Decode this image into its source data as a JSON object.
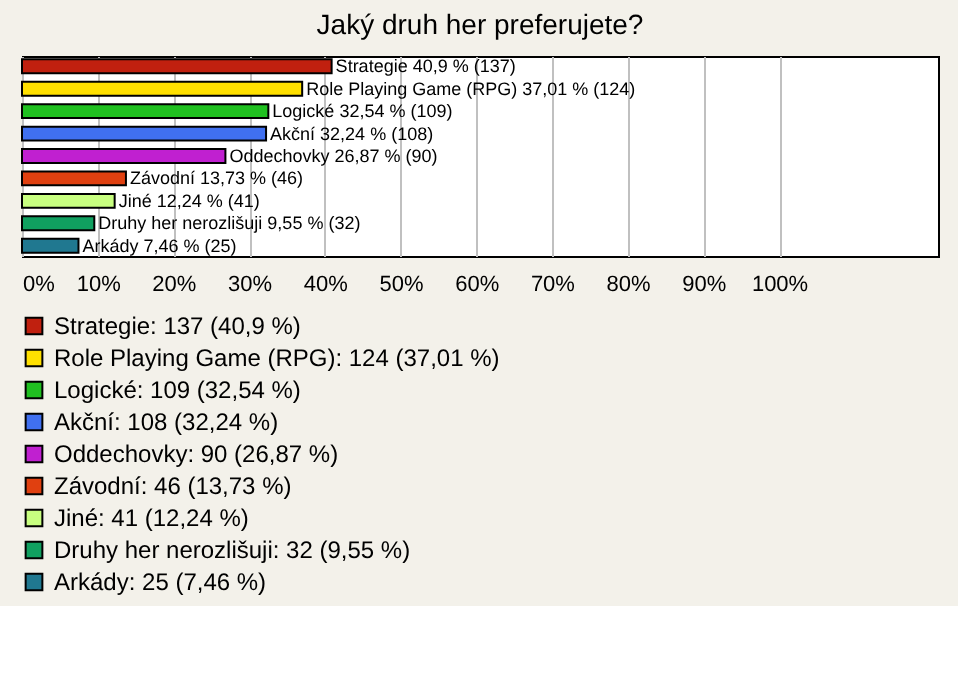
{
  "chart_data": {
    "type": "bar",
    "orientation": "horizontal",
    "title": "Jaký druh her preferujete?",
    "categories": [
      "Strategie",
      "Role Playing Game (RPG)",
      "Logické",
      "Akční",
      "Oddechovky",
      "Závodní",
      "Jiné",
      "Druhy her nerozlišuji",
      "Arkády"
    ],
    "series": [
      {
        "name": "Strategie: 137 (40,9 %)",
        "color": "#c0200f",
        "values": [
          40.9,
          null,
          null,
          null,
          null,
          null,
          null,
          null,
          null
        ],
        "value_labels": [
          "40,9 % (137)",
          null,
          null,
          null,
          null,
          null,
          null,
          null,
          null
        ]
      },
      {
        "name": "Role Playing Game (RPG): 124 (37,01 %)",
        "color": "#ffe000",
        "values": [
          null,
          37.01,
          null,
          null,
          null,
          null,
          null,
          null,
          null
        ],
        "value_labels": [
          null,
          "37,01 % (124)",
          null,
          null,
          null,
          null,
          null,
          null,
          null
        ]
      },
      {
        "name": "Logické: 109 (32,54 %)",
        "color": "#20c020",
        "values": [
          null,
          null,
          32.54,
          null,
          null,
          null,
          null,
          null,
          null
        ],
        "value_labels": [
          null,
          null,
          "32,54 % (109)",
          null,
          null,
          null,
          null,
          null,
          null
        ]
      },
      {
        "name": "Akční: 108 (32,24 %)",
        "color": "#4070f0",
        "values": [
          null,
          null,
          null,
          32.24,
          null,
          null,
          null,
          null,
          null
        ],
        "value_labels": [
          null,
          null,
          null,
          "32,24 % (108)",
          null,
          null,
          null,
          null,
          null
        ]
      },
      {
        "name": "Oddechovky: 90 (26,87 %)",
        "color": "#c020d0",
        "values": [
          null,
          null,
          null,
          null,
          26.87,
          null,
          null,
          null,
          null
        ],
        "value_labels": [
          null,
          null,
          null,
          null,
          "26,87 % (90)",
          null,
          null,
          null,
          null
        ]
      },
      {
        "name": "Závodní: 46 (13,73 %)",
        "color": "#e04010",
        "values": [
          null,
          null,
          null,
          null,
          null,
          13.73,
          null,
          null,
          null
        ],
        "value_labels": [
          null,
          null,
          null,
          null,
          null,
          "13,73 % (46)",
          null,
          null,
          null
        ]
      },
      {
        "name": "Jiné: 41 (12,24 %)",
        "color": "#c8ff80",
        "values": [
          null,
          null,
          null,
          null,
          null,
          null,
          12.24,
          null,
          null
        ],
        "value_labels": [
          null,
          null,
          null,
          null,
          null,
          null,
          "12,24 % (41)",
          null,
          null
        ]
      },
      {
        "name": "Druhy her nerozlišuji: 32 (9,55 %)",
        "color": "#10a060",
        "values": [
          null,
          null,
          null,
          null,
          null,
          null,
          null,
          9.55,
          null
        ],
        "value_labels": [
          null,
          null,
          null,
          null,
          null,
          null,
          null,
          "9,55 % (32)",
          null
        ]
      },
      {
        "name": "Arkády: 25 (7,46 %)",
        "color": "#207890",
        "values": [
          null,
          null,
          null,
          null,
          null,
          null,
          null,
          null,
          7.46
        ],
        "value_labels": [
          null,
          null,
          null,
          null,
          null,
          null,
          null,
          null,
          "7,46 % (25)"
        ]
      }
    ],
    "xlim": [
      0,
      121
    ],
    "xticks": [
      {
        "value": 0,
        "label": "0%"
      },
      {
        "value": 10,
        "label": "10%"
      },
      {
        "value": 20,
        "label": "20%"
      },
      {
        "value": 30,
        "label": "30%"
      },
      {
        "value": 40,
        "label": "40%"
      },
      {
        "value": 50,
        "label": "50%"
      },
      {
        "value": 60,
        "label": "60%"
      },
      {
        "value": 70,
        "label": "70%"
      },
      {
        "value": 80,
        "label": "80%"
      },
      {
        "value": 90,
        "label": "90%"
      },
      {
        "value": 100,
        "label": "100%"
      }
    ],
    "grid": "x",
    "tick_labels": "x",
    "legend": "bottom"
  }
}
